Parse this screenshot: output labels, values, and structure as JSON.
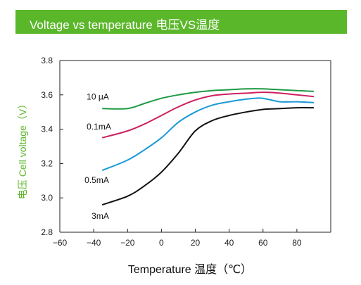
{
  "header": {
    "title": "Voltage vs temperature   电压VS温度"
  },
  "colors": {
    "banner": "#5bb72a",
    "axis": "#222222"
  },
  "chart_data": {
    "type": "line",
    "xlabel": "Temperature 温度（℃）",
    "ylabel": "电压 Cell voltage（V）",
    "xlim": [
      -60,
      100
    ],
    "ylim": [
      2.8,
      3.8
    ],
    "xticks": [
      -60,
      -40,
      -20,
      0,
      20,
      40,
      60,
      80
    ],
    "yticks": [
      2.8,
      3.0,
      3.2,
      3.4,
      3.6,
      3.8
    ],
    "xtick_labels": [
      "−60",
      "−40",
      "−20",
      "0",
      "20",
      "40",
      "60",
      "80"
    ],
    "ytick_labels": [
      "2.8",
      "3.0",
      "3.2",
      "3.4",
      "3.6",
      "3.8"
    ],
    "grid": false,
    "series": [
      {
        "name": "10 μA",
        "color": "#1e9a45",
        "x": [
          -35,
          -20,
          -10,
          0,
          10,
          20,
          30,
          40,
          50,
          60,
          70,
          80,
          90
        ],
        "y": [
          3.52,
          3.52,
          3.55,
          3.58,
          3.6,
          3.615,
          3.625,
          3.63,
          3.635,
          3.635,
          3.63,
          3.625,
          3.62
        ]
      },
      {
        "name": "0.1mA",
        "color": "#cc2060",
        "x": [
          -35,
          -20,
          -10,
          0,
          10,
          20,
          30,
          40,
          50,
          60,
          70,
          80,
          90
        ],
        "y": [
          3.35,
          3.39,
          3.43,
          3.48,
          3.53,
          3.57,
          3.595,
          3.605,
          3.61,
          3.615,
          3.61,
          3.6,
          3.59
        ]
      },
      {
        "name": "0.5mA",
        "color": "#1a9ad6",
        "x": [
          -35,
          -20,
          -10,
          0,
          10,
          20,
          30,
          40,
          50,
          55,
          60,
          70,
          80,
          90
        ],
        "y": [
          3.16,
          3.22,
          3.28,
          3.35,
          3.44,
          3.5,
          3.54,
          3.56,
          3.575,
          3.58,
          3.58,
          3.56,
          3.56,
          3.555
        ]
      },
      {
        "name": "3mA",
        "color": "#111111",
        "x": [
          -35,
          -20,
          -10,
          0,
          10,
          20,
          30,
          40,
          50,
          60,
          70,
          80,
          90
        ],
        "y": [
          2.96,
          3.01,
          3.07,
          3.15,
          3.26,
          3.39,
          3.45,
          3.48,
          3.5,
          3.515,
          3.52,
          3.525,
          3.525
        ]
      }
    ]
  }
}
